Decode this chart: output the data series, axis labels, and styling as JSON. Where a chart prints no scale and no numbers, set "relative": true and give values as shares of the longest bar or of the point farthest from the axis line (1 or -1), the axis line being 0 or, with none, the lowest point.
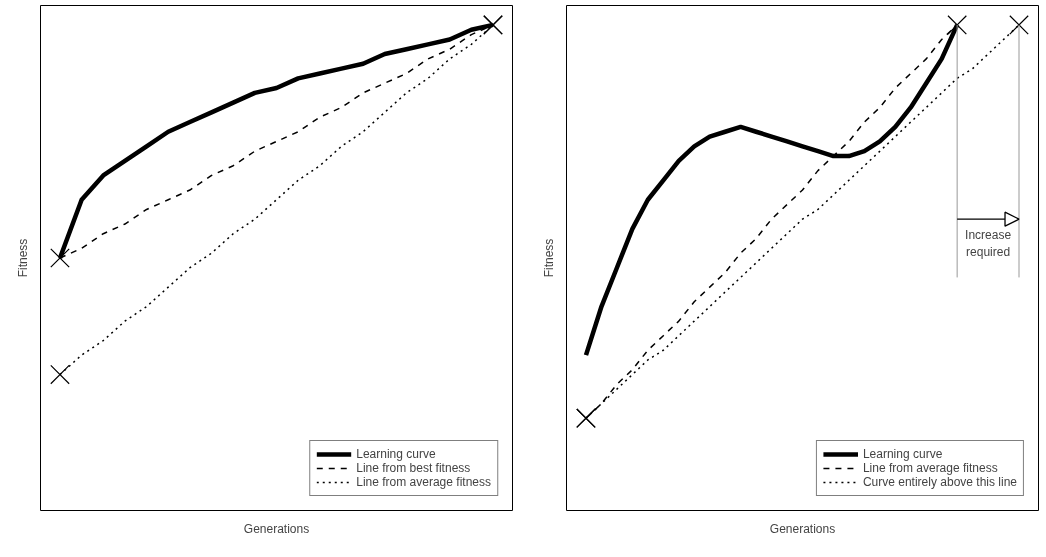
{
  "chart_data": [
    {
      "type": "line",
      "relative": true,
      "xlabel": "Generations",
      "ylabel": "Fitness",
      "grid": false,
      "legend": "bottom right",
      "tick_labels": false,
      "categories": [
        null,
        null,
        null,
        null,
        null,
        null,
        null,
        null,
        null,
        null,
        null,
        null,
        null,
        null,
        null,
        null,
        null,
        null,
        null,
        null,
        null
      ],
      "series": [
        {
          "name": "Learning curve",
          "color": "#000000",
          "line_style": "solid",
          "values": [
            0.52,
            0.64,
            0.69,
            0.72,
            0.75,
            0.78,
            0.8,
            0.82,
            0.84,
            0.86,
            0.87,
            0.89,
            0.9,
            0.91,
            0.92,
            0.94,
            0.95,
            0.96,
            0.97,
            0.99,
            1.0
          ]
        },
        {
          "name": "Line from best fitness",
          "color": "#000000",
          "line_style": "dashed",
          "values": [
            0.52,
            0.54,
            0.57,
            0.59,
            0.62,
            0.64,
            0.66,
            0.69,
            0.71,
            0.74,
            0.76,
            0.78,
            0.81,
            0.83,
            0.86,
            0.88,
            0.9,
            0.93,
            0.95,
            0.98,
            1.0
          ]
        },
        {
          "name": "Line from average fitness",
          "color": "#000000",
          "line_style": "dotted",
          "values": [
            0.28,
            0.32,
            0.35,
            0.39,
            0.42,
            0.46,
            0.5,
            0.53,
            0.57,
            0.6,
            0.64,
            0.68,
            0.71,
            0.75,
            0.78,
            0.82,
            0.86,
            0.89,
            0.93,
            0.96,
            1.0
          ]
        }
      ]
    },
    {
      "type": "line",
      "relative": true,
      "xlabel": "Generations",
      "ylabel": "Fitness",
      "grid": false,
      "legend": "bottom right",
      "tick_labels": false,
      "annotations": [
        "Increase required"
      ],
      "categories": [
        null,
        null,
        null,
        null,
        null,
        null,
        null,
        null,
        null,
        null,
        null,
        null,
        null,
        null,
        null,
        null,
        null,
        null,
        null,
        null,
        null,
        null,
        null,
        null,
        null,
        null,
        null,
        null,
        null
      ],
      "series": [
        {
          "name": "Learning curve",
          "color": "#000000",
          "line_style": "solid",
          "values": [
            0.32,
            0.42,
            0.5,
            0.58,
            0.64,
            0.68,
            0.72,
            0.75,
            0.77,
            0.78,
            0.79,
            0.78,
            0.77,
            0.76,
            0.75,
            0.74,
            0.73,
            0.73,
            0.74,
            0.76,
            0.79,
            0.83,
            0.88,
            0.93,
            1.0,
            null,
            null,
            null,
            null
          ]
        },
        {
          "name": "Line from average fitness",
          "color": "#000000",
          "line_style": "dashed",
          "values": [
            0.19,
            0.22,
            0.26,
            0.29,
            0.33,
            0.36,
            0.39,
            0.43,
            0.46,
            0.49,
            0.53,
            0.56,
            0.6,
            0.63,
            0.66,
            0.7,
            0.73,
            0.76,
            0.8,
            0.83,
            0.87,
            0.9,
            0.93,
            0.97,
            1.0,
            null,
            null,
            null,
            null
          ]
        },
        {
          "name": "Curve entirely above this line",
          "color": "#000000",
          "line_style": "dotted",
          "values": [
            0.19,
            0.22,
            0.25,
            0.28,
            0.31,
            0.33,
            0.36,
            0.39,
            0.42,
            0.45,
            0.48,
            0.51,
            0.54,
            0.57,
            0.6,
            0.62,
            0.65,
            0.68,
            0.71,
            0.74,
            0.77,
            0.8,
            0.83,
            0.86,
            0.89,
            0.91,
            0.94,
            0.97,
            1.0
          ]
        }
      ]
    }
  ]
}
